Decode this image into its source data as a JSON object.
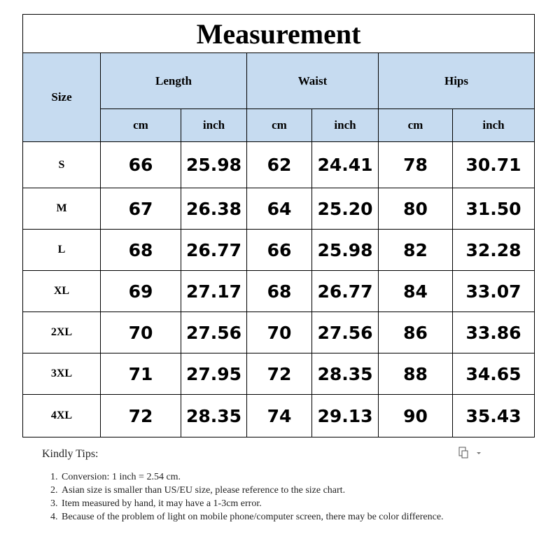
{
  "table": {
    "title": "Measurement",
    "size_header": "Size",
    "groups": [
      "Length",
      "Waist",
      "Hips"
    ],
    "units": [
      "cm",
      "inch",
      "cm",
      "inch",
      "cm",
      "inch"
    ],
    "rows": [
      [
        "S",
        "66",
        "25.98",
        "62",
        "24.41",
        "78",
        "30.71"
      ],
      [
        "M",
        "67",
        "26.38",
        "64",
        "25.20",
        "80",
        "31.50"
      ],
      [
        "L",
        "68",
        "26.77",
        "66",
        "25.98",
        "82",
        "32.28"
      ],
      [
        "XL",
        "69",
        "27.17",
        "68",
        "26.77",
        "84",
        "33.07"
      ],
      [
        "2XL",
        "70",
        "27.56",
        "70",
        "27.56",
        "86",
        "33.86"
      ],
      [
        "3XL",
        "71",
        "27.95",
        "72",
        "28.35",
        "88",
        "34.65"
      ],
      [
        "4XL",
        "72",
        "28.35",
        "74",
        "29.13",
        "90",
        "35.43"
      ]
    ]
  },
  "tips": {
    "title": "Kindly Tips:",
    "items": [
      "Conversion: 1 inch = 2.54 cm.",
      "Asian size is smaller than US/EU size, please reference to the size chart.",
      "Item measured by hand, it may have a 1-3cm error.",
      "Because of the problem of light on mobile phone/computer screen, there may be color difference."
    ]
  }
}
